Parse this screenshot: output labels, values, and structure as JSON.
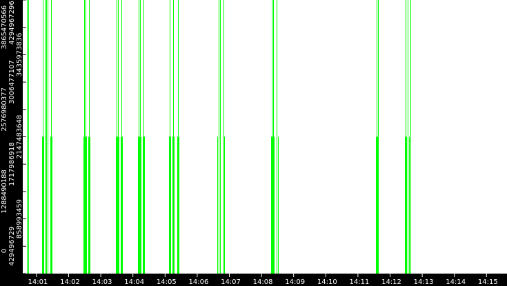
{
  "chart_data": {
    "type": "bar",
    "title": "",
    "xlabel": "",
    "ylabel": "",
    "ylim": [
      0,
      4294967296
    ],
    "xlim": [
      "14:00:20.6",
      "14:15:40.0"
    ],
    "grid": false,
    "bar_color": "#00ff00",
    "background": "#ffffff",
    "axis_background": "#000000",
    "axis_text_color": "#ffffff",
    "y_tick_labels": [
      "0",
      "429496729",
      "858993459",
      "1288490188",
      "1717986918",
      "2147483648",
      "2576980377",
      "3006477107",
      "3435973836",
      "3865470566",
      "4294967296"
    ],
    "x_tick_labels": [
      "14:01",
      "14:02",
      "14:03",
      "14:04",
      "14:05",
      "14:06",
      "14:07",
      "14:08",
      "14:09",
      "14:10",
      "14:11",
      "14:12",
      "14:13",
      "14:14",
      "14:15"
    ],
    "points": [
      [
        "14:00:41.9",
        4294967296
      ],
      [
        "14:00:44.4",
        4294967296
      ],
      [
        "14:01:10.6",
        2147483648
      ],
      [
        "14:01:11.9",
        4294967296
      ],
      [
        "14:01:13.1",
        2147483648
      ],
      [
        "14:01:15.6",
        4294967296
      ],
      [
        "14:01:18.1",
        4294967296
      ],
      [
        "14:01:20.6",
        4294967296
      ],
      [
        "14:01:25.6",
        2147483648
      ],
      [
        "14:01:26.9",
        4294967296
      ],
      [
        "14:01:28.1",
        2147483648
      ],
      [
        "14:02:28.1",
        2147483648
      ],
      [
        "14:02:29.4",
        4294967296
      ],
      [
        "14:02:30.6",
        2147483648
      ],
      [
        "14:02:31.9",
        4294967296
      ],
      [
        "14:02:33.1",
        2147483648
      ],
      [
        "14:02:36.9",
        2147483648
      ],
      [
        "14:02:38.1",
        4294967296
      ],
      [
        "14:02:39.4",
        2147483648
      ],
      [
        "14:03:28.1",
        2147483648
      ],
      [
        "14:03:29.4",
        4294967296
      ],
      [
        "14:03:30.6",
        2147483648
      ],
      [
        "14:03:31.9",
        4294967296
      ],
      [
        "14:03:33.1",
        2147483648
      ],
      [
        "14:03:36.9",
        2147483648
      ],
      [
        "14:03:38.1",
        4294967296
      ],
      [
        "14:03:39.4",
        2147483648
      ],
      [
        "14:04:09.4",
        2147483648
      ],
      [
        "14:04:10.6",
        4294967296
      ],
      [
        "14:04:11.9",
        2147483648
      ],
      [
        "14:04:13.1",
        4294967296
      ],
      [
        "14:04:14.4",
        2147483648
      ],
      [
        "14:04:18.1",
        2147483648
      ],
      [
        "14:04:19.4",
        4294967296
      ],
      [
        "14:04:20.6",
        2147483648
      ],
      [
        "14:05:06.9",
        2147483648
      ],
      [
        "14:05:08.1",
        4294967296
      ],
      [
        "14:05:09.4",
        2147483648
      ],
      [
        "14:05:14.4",
        2147483648
      ],
      [
        "14:05:15.6",
        4294967296
      ],
      [
        "14:05:16.9",
        2147483648
      ],
      [
        "14:05:23.1",
        2147483648
      ],
      [
        "14:05:24.4",
        4294967296
      ],
      [
        "14:05:25.6",
        2147483648
      ],
      [
        "14:06:38.1",
        2147483648
      ],
      [
        "14:06:39.4",
        4294967296
      ],
      [
        "14:06:40.6",
        2147483648
      ],
      [
        "14:06:43.1",
        4294967296
      ],
      [
        "14:06:49.4",
        4294967296
      ],
      [
        "14:06:50.6",
        2147483648
      ],
      [
        "14:08:18.1",
        2147483648
      ],
      [
        "14:08:19.4",
        4294967296
      ],
      [
        "14:08:20.6",
        2147483648
      ],
      [
        "14:08:21.9",
        4294967296
      ],
      [
        "14:08:23.1",
        2147483648
      ],
      [
        "14:08:28.1",
        4294967296
      ],
      [
        "14:08:30.6",
        2147483648
      ],
      [
        "14:11:33.1",
        2147483648
      ],
      [
        "14:11:34.4",
        4294967296
      ],
      [
        "14:11:35.6",
        2147483648
      ],
      [
        "14:11:38.1",
        4294967296
      ],
      [
        "14:12:28.1",
        2147483648
      ],
      [
        "14:12:29.4",
        4294967296
      ],
      [
        "14:12:30.6",
        2147483648
      ],
      [
        "14:12:33.1",
        4294967296
      ],
      [
        "14:12:35.6",
        2147483648
      ],
      [
        "14:12:38.1",
        4294967296
      ]
    ]
  }
}
